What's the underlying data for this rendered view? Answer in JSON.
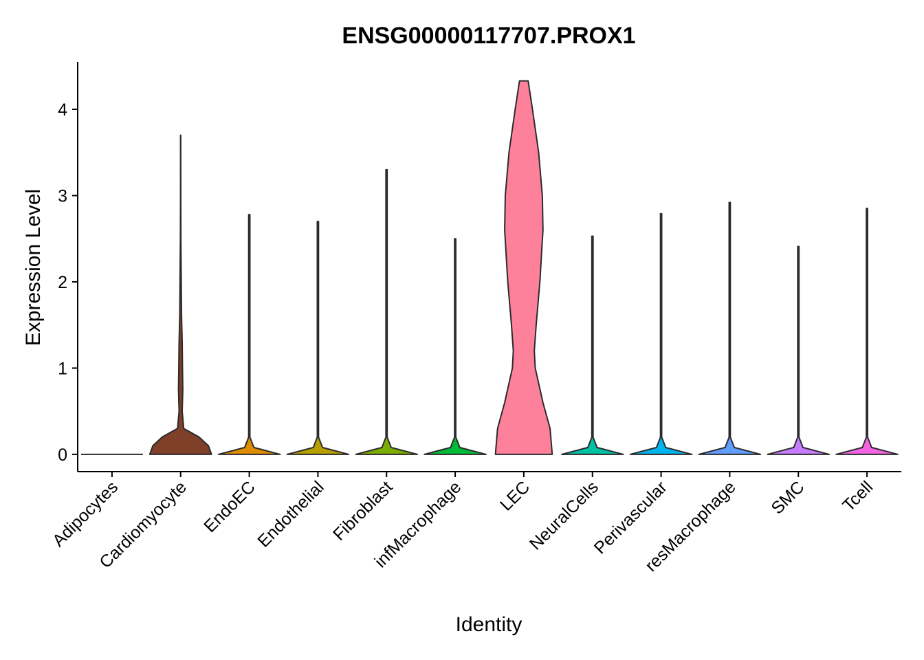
{
  "chart_data": {
    "type": "violin",
    "title": "ENSG00000117707.PROX1",
    "xlabel": "Identity",
    "ylabel": "Expression Level",
    "ylim": [
      -0.2,
      4.55
    ],
    "yticks": [
      0,
      1,
      2,
      3,
      4
    ],
    "grid": false,
    "legend": "none",
    "categories": [
      "Adipocytes",
      "Cardiomyocyte",
      "EndoEC",
      "Endothelial",
      "Fibroblast",
      "infMacrophage",
      "LEC",
      "NeuralCells",
      "Perivascular",
      "resMacrophage",
      "SMC",
      "Tcell"
    ],
    "colors": [
      "#f8766d",
      "#7f3f28",
      "#de8c00",
      "#b79f00",
      "#7cae00",
      "#00ba38",
      "#fe819c",
      "#00c1a3",
      "#00b4f0",
      "#619cff",
      "#c77cff",
      "#f564e3"
    ],
    "max_expression": [
      0,
      3.7,
      2.78,
      2.7,
      3.3,
      2.5,
      4.33,
      2.53,
      2.79,
      2.92,
      2.41,
      2.85
    ],
    "density_profiles": [
      [
        [
          0,
          1
        ]
      ],
      [
        [
          0,
          1
        ],
        [
          0.1,
          0.9
        ],
        [
          0.2,
          0.6
        ],
        [
          0.3,
          0.1
        ],
        [
          0.5,
          0.05
        ],
        [
          0.75,
          0.07
        ],
        [
          1.0,
          0.06
        ],
        [
          1.3,
          0.05
        ],
        [
          1.6,
          0.03
        ],
        [
          2.0,
          0.02
        ],
        [
          2.5,
          0.008
        ],
        [
          3.0,
          0.004
        ],
        [
          3.7,
          0.003
        ]
      ],
      [
        [
          0,
          1
        ],
        [
          0.08,
          0.15
        ],
        [
          0.2,
          0.02
        ],
        [
          2.78,
          0.02
        ]
      ],
      [
        [
          0,
          1
        ],
        [
          0.08,
          0.15
        ],
        [
          0.2,
          0.02
        ],
        [
          2.7,
          0.02
        ]
      ],
      [
        [
          0,
          1
        ],
        [
          0.08,
          0.15
        ],
        [
          0.2,
          0.02
        ],
        [
          3.3,
          0.02
        ]
      ],
      [
        [
          0,
          1
        ],
        [
          0.08,
          0.15
        ],
        [
          0.2,
          0.02
        ],
        [
          2.5,
          0.02
        ]
      ],
      [
        [
          0,
          0.92
        ],
        [
          0.3,
          0.85
        ],
        [
          0.6,
          0.62
        ],
        [
          1.0,
          0.37
        ],
        [
          1.2,
          0.34
        ],
        [
          1.5,
          0.4
        ],
        [
          2.0,
          0.52
        ],
        [
          2.6,
          0.62
        ],
        [
          3.0,
          0.6
        ],
        [
          3.5,
          0.48
        ],
        [
          4.0,
          0.28
        ],
        [
          4.33,
          0.14
        ]
      ],
      [
        [
          0,
          1
        ],
        [
          0.08,
          0.15
        ],
        [
          0.2,
          0.02
        ],
        [
          2.53,
          0.02
        ]
      ],
      [
        [
          0,
          1
        ],
        [
          0.08,
          0.15
        ],
        [
          0.2,
          0.02
        ],
        [
          2.79,
          0.02
        ]
      ],
      [
        [
          0,
          1
        ],
        [
          0.08,
          0.15
        ],
        [
          0.2,
          0.02
        ],
        [
          2.92,
          0.02
        ]
      ],
      [
        [
          0,
          1
        ],
        [
          0.08,
          0.15
        ],
        [
          0.2,
          0.02
        ],
        [
          2.41,
          0.02
        ]
      ],
      [
        [
          0,
          1
        ],
        [
          0.08,
          0.15
        ],
        [
          0.2,
          0.02
        ],
        [
          2.85,
          0.02
        ]
      ]
    ]
  }
}
